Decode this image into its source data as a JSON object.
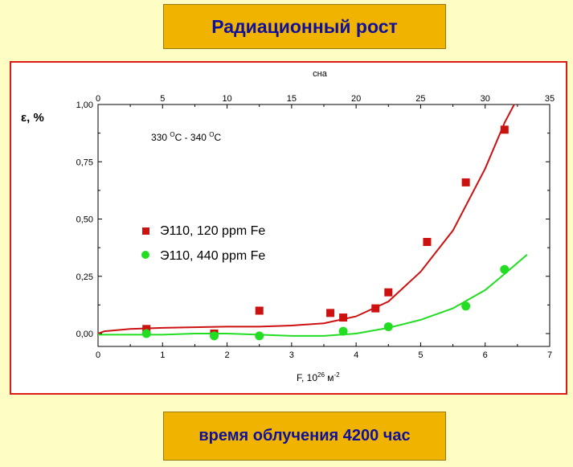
{
  "header": {
    "title": "Радиационный рост"
  },
  "footer": {
    "caption": "время облучения  4200 час"
  },
  "colors": {
    "series_120": "#cc1111",
    "series_440": "#22dd22",
    "panel_border": "#dd1a1a",
    "title_bg": "#f0b400",
    "title_text": "#10109a"
  },
  "chart_data": {
    "type": "scatter",
    "ylabel": "ε, %",
    "xlabel_main": "F, 10",
    "xlabel_exp1": "26",
    "xlabel_mid": " м",
    "xlabel_exp2": "-2",
    "top_axis_label": "сна",
    "annotation": {
      "t1": "330 ",
      "sup1": "O",
      "t2": "C - 340 ",
      "sup2": "O",
      "t3": "C"
    },
    "xlim": [
      0,
      7
    ],
    "ylim": [
      -0.05,
      1.0
    ],
    "x_ticks": [
      "0",
      "1",
      "2",
      "3",
      "4",
      "5",
      "6",
      "7"
    ],
    "x_tick_values": [
      0,
      1,
      2,
      3,
      4,
      5,
      6,
      7
    ],
    "y_ticks": [
      "0,00",
      "0,25",
      "0,50",
      "0,75",
      "1,00"
    ],
    "y_tick_values": [
      0,
      0.25,
      0.5,
      0.75,
      1.0
    ],
    "top_lim": [
      0,
      35
    ],
    "top_ticks": [
      "0",
      "5",
      "10",
      "15",
      "20",
      "25",
      "30",
      "35"
    ],
    "top_tick_values": [
      0,
      5,
      10,
      15,
      20,
      25,
      30,
      35
    ],
    "legend_position": "center-left",
    "series": [
      {
        "name": "Э110, 120 ppm Fe",
        "marker": "square",
        "color": "#cc1111",
        "points": [
          {
            "x": 0.75,
            "y": 0.02
          },
          {
            "x": 1.8,
            "y": 0.0
          },
          {
            "x": 2.5,
            "y": 0.1
          },
          {
            "x": 3.6,
            "y": 0.09
          },
          {
            "x": 3.8,
            "y": 0.07
          },
          {
            "x": 4.3,
            "y": 0.11
          },
          {
            "x": 4.5,
            "y": 0.18
          },
          {
            "x": 5.1,
            "y": 0.4
          },
          {
            "x": 5.7,
            "y": 0.66
          },
          {
            "x": 6.3,
            "y": 0.89
          }
        ],
        "fit": [
          {
            "x": 0.0,
            "y": 0.0
          },
          {
            "x": 0.1,
            "y": 0.01
          },
          {
            "x": 0.5,
            "y": 0.02
          },
          {
            "x": 1.0,
            "y": 0.025
          },
          {
            "x": 2.0,
            "y": 0.03
          },
          {
            "x": 2.5,
            "y": 0.03
          },
          {
            "x": 3.0,
            "y": 0.035
          },
          {
            "x": 3.5,
            "y": 0.045
          },
          {
            "x": 4.0,
            "y": 0.075
          },
          {
            "x": 4.5,
            "y": 0.14
          },
          {
            "x": 5.0,
            "y": 0.27
          },
          {
            "x": 5.5,
            "y": 0.45
          },
          {
            "x": 6.0,
            "y": 0.72
          },
          {
            "x": 6.3,
            "y": 0.92
          },
          {
            "x": 6.45,
            "y": 1.0
          }
        ]
      },
      {
        "name": "Э110, 440 ppm Fe",
        "marker": "circle",
        "color": "#22dd22",
        "points": [
          {
            "x": 0.75,
            "y": 0.0
          },
          {
            "x": 1.8,
            "y": -0.01
          },
          {
            "x": 2.5,
            "y": -0.01
          },
          {
            "x": 3.8,
            "y": 0.01
          },
          {
            "x": 4.5,
            "y": 0.03
          },
          {
            "x": 5.7,
            "y": 0.12
          },
          {
            "x": 6.3,
            "y": 0.28
          }
        ],
        "fit": [
          {
            "x": 0.0,
            "y": -0.005
          },
          {
            "x": 0.5,
            "y": -0.005
          },
          {
            "x": 1.0,
            "y": -0.005
          },
          {
            "x": 1.5,
            "y": 0.0
          },
          {
            "x": 2.0,
            "y": 0.0
          },
          {
            "x": 2.5,
            "y": -0.005
          },
          {
            "x": 3.0,
            "y": -0.01
          },
          {
            "x": 3.5,
            "y": -0.01
          },
          {
            "x": 4.0,
            "y": 0.0
          },
          {
            "x": 4.5,
            "y": 0.025
          },
          {
            "x": 5.0,
            "y": 0.06
          },
          {
            "x": 5.5,
            "y": 0.11
          },
          {
            "x": 6.0,
            "y": 0.19
          },
          {
            "x": 6.3,
            "y": 0.26
          },
          {
            "x": 6.65,
            "y": 0.345
          }
        ]
      }
    ]
  }
}
